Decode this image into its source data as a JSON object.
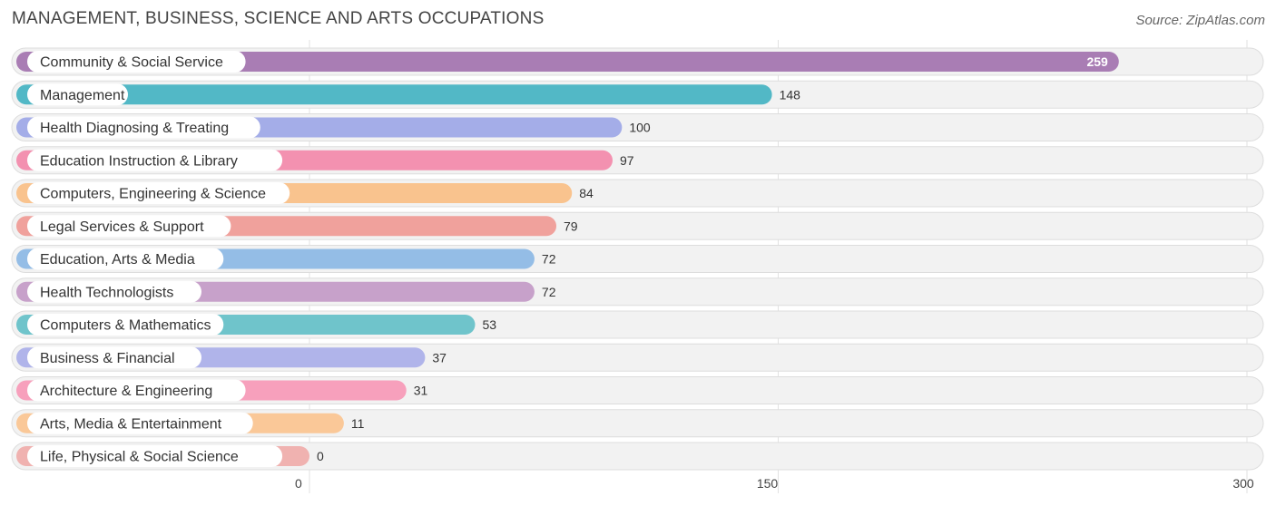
{
  "header": {
    "title": "MANAGEMENT, BUSINESS, SCIENCE AND ARTS OCCUPATIONS",
    "source": "Source: ZipAtlas.com"
  },
  "chart_data": {
    "type": "bar",
    "orientation": "horizontal",
    "categories": [
      "Community & Social Service",
      "Management",
      "Health Diagnosing & Treating",
      "Education Instruction & Library",
      "Computers, Engineering & Science",
      "Legal Services & Support",
      "Education, Arts & Media",
      "Health Technologists",
      "Computers & Mathematics",
      "Business & Financial",
      "Architecture & Engineering",
      "Arts, Media & Entertainment",
      "Life, Physical & Social Science"
    ],
    "values": [
      259,
      148,
      100,
      97,
      84,
      79,
      72,
      72,
      53,
      37,
      31,
      11,
      0
    ],
    "colors": [
      "#a97db4",
      "#52b8c6",
      "#a4ade8",
      "#f391b0",
      "#f9c38e",
      "#f0a19c",
      "#94bde6",
      "#c7a1ca",
      "#6fc4cb",
      "#b0b4ea",
      "#f7a0bc",
      "#fac898",
      "#f0b2b0"
    ],
    "xlim": [
      0,
      300
    ],
    "xticks": [
      0,
      150,
      300
    ],
    "grid": true
  }
}
